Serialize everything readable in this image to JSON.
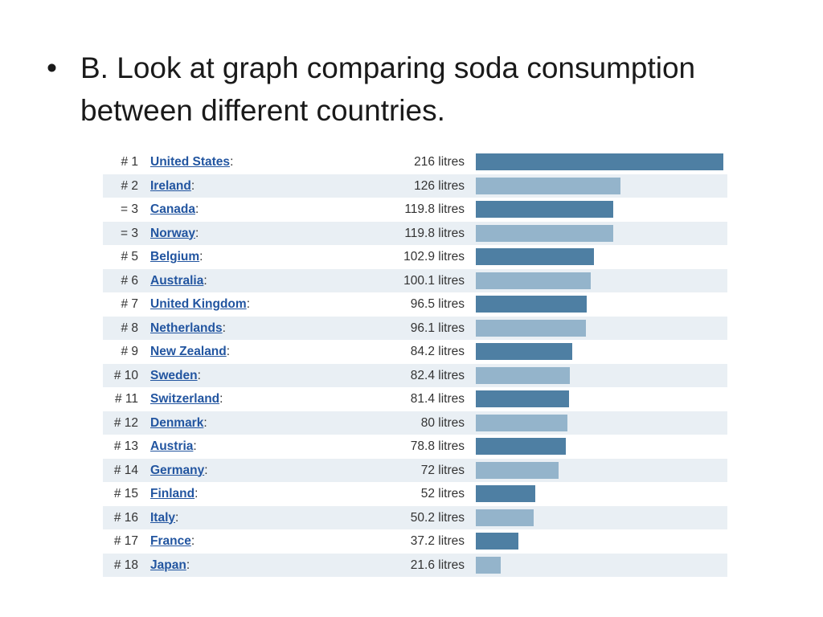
{
  "slide": {
    "bullet": "•",
    "text": "B. Look at graph comparing soda consumption between different countries."
  },
  "colors": {
    "bar_dark": "#4e7fa3",
    "bar_light": "#94b4cb",
    "row_alt_background": "#e9eff4",
    "link": "#2255a0"
  },
  "chart_data": {
    "type": "bar",
    "orientation": "horizontal",
    "grid": false,
    "ylim": [
      0,
      216
    ],
    "unit": "litres",
    "rows": [
      {
        "rank": "# 1",
        "country": "United States",
        "label": "216 litres",
        "value": 216
      },
      {
        "rank": "# 2",
        "country": "Ireland",
        "label": "126 litres",
        "value": 126
      },
      {
        "rank": "= 3",
        "country": "Canada",
        "label": "119.8 litres",
        "value": 119.8
      },
      {
        "rank": "= 3",
        "country": "Norway",
        "label": "119.8 litres",
        "value": 119.8
      },
      {
        "rank": "# 5",
        "country": "Belgium",
        "label": "102.9 litres",
        "value": 102.9
      },
      {
        "rank": "# 6",
        "country": "Australia",
        "label": "100.1 litres",
        "value": 100.1
      },
      {
        "rank": "# 7",
        "country": "United Kingdom",
        "label": "96.5 litres",
        "value": 96.5
      },
      {
        "rank": "# 8",
        "country": "Netherlands",
        "label": "96.1 litres",
        "value": 96.1
      },
      {
        "rank": "# 9",
        "country": "New Zealand",
        "label": "84.2 litres",
        "value": 84.2
      },
      {
        "rank": "# 10",
        "country": "Sweden",
        "label": "82.4 litres",
        "value": 82.4
      },
      {
        "rank": "# 11",
        "country": "Switzerland",
        "label": "81.4 litres",
        "value": 81.4
      },
      {
        "rank": "# 12",
        "country": "Denmark",
        "label": "80 litres",
        "value": 80
      },
      {
        "rank": "# 13",
        "country": "Austria",
        "label": "78.8 litres",
        "value": 78.8
      },
      {
        "rank": "# 14",
        "country": "Germany",
        "label": "72 litres",
        "value": 72
      },
      {
        "rank": "# 15",
        "country": "Finland",
        "label": "52 litres",
        "value": 52
      },
      {
        "rank": "# 16",
        "country": "Italy",
        "label": "50.2 litres",
        "value": 50.2
      },
      {
        "rank": "# 17",
        "country": "France",
        "label": "37.2 litres",
        "value": 37.2
      },
      {
        "rank": "# 18",
        "country": "Japan",
        "label": "21.6 litres",
        "value": 21.6
      }
    ]
  }
}
